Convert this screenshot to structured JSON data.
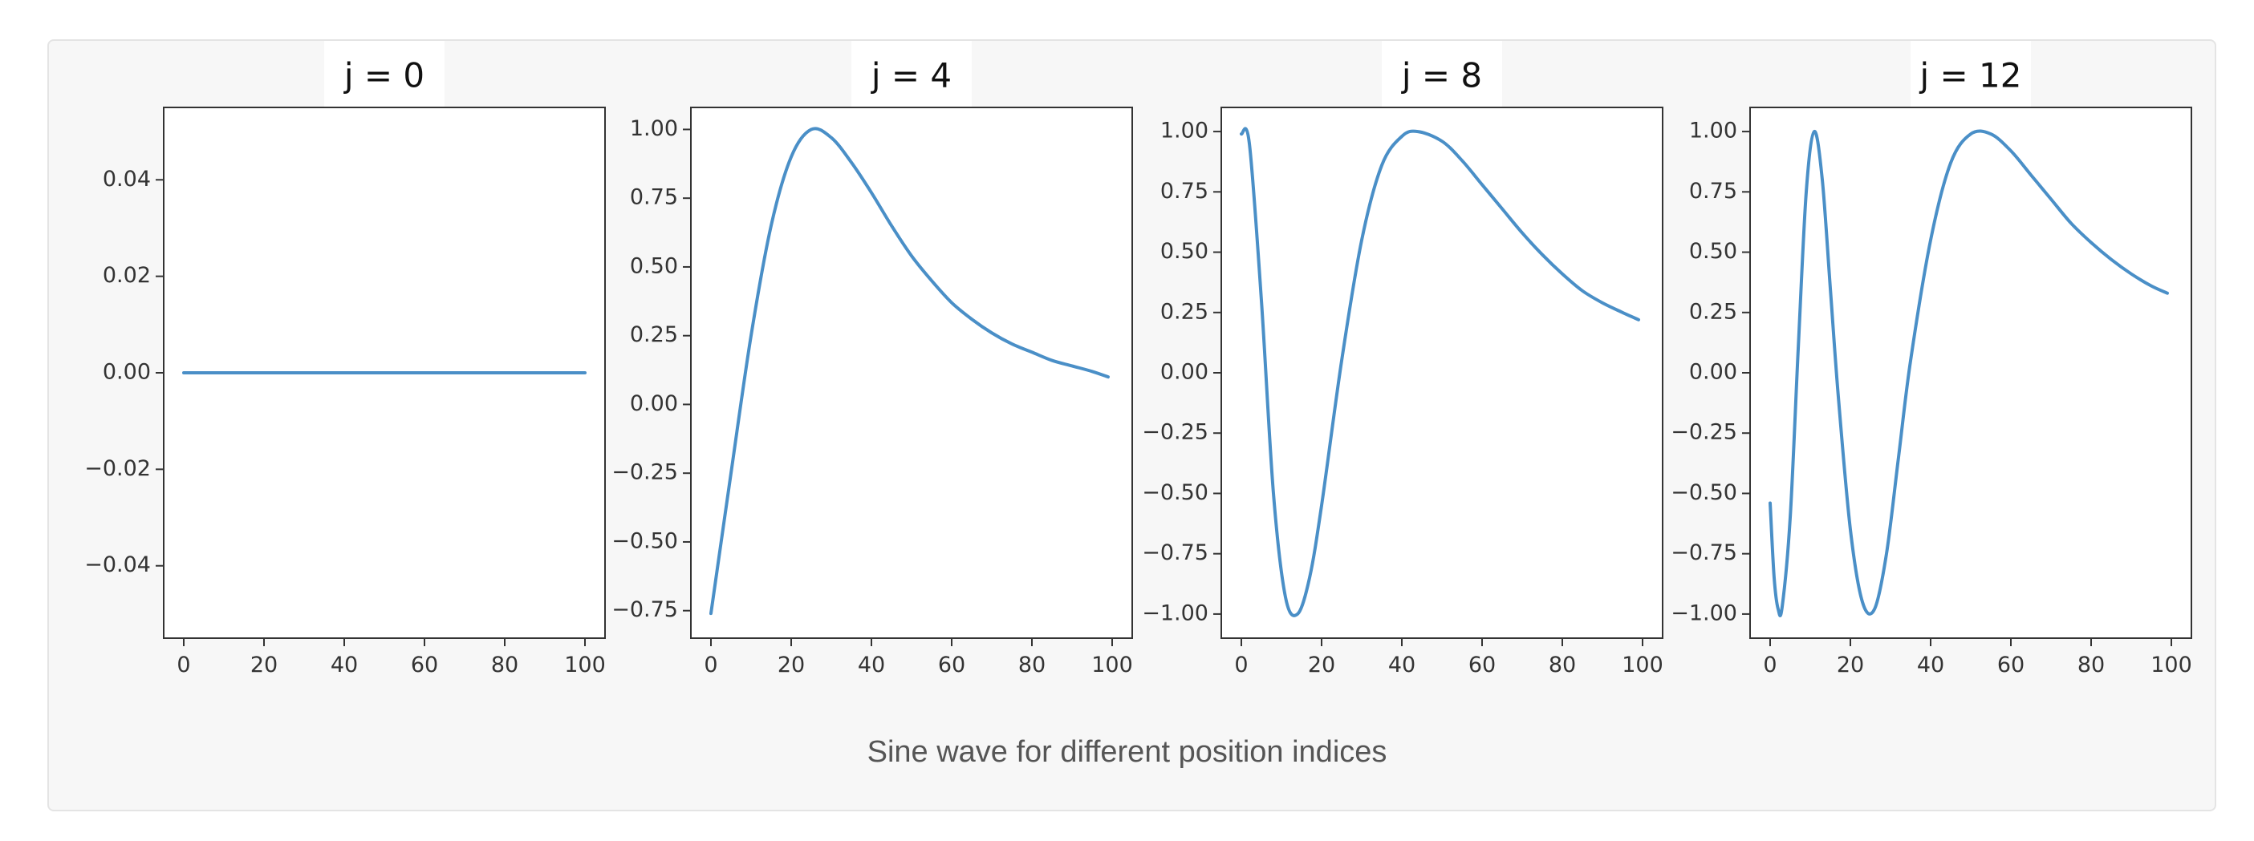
{
  "caption": "Sine wave for different position indices",
  "colors": {
    "line": "#4a8fc7",
    "axes": "#333333",
    "card": "#f7f7f7",
    "plot": "#ffffff"
  },
  "chart_data": [
    {
      "type": "line",
      "title": "j = 0",
      "x": [
        0,
        100
      ],
      "series": [
        {
          "values": [
            0,
            0
          ]
        }
      ],
      "xlim": [
        -5,
        105
      ],
      "ylim": [
        -0.055,
        0.055
      ],
      "xticks": [
        0,
        20,
        40,
        60,
        80,
        100
      ],
      "yticks": [
        -0.04,
        -0.02,
        0.0,
        0.02,
        0.04
      ],
      "ytick_labels": [
        "−0.04",
        "−0.02",
        "0.00",
        "0.02",
        "0.04"
      ],
      "grid": false
    },
    {
      "type": "line",
      "title": "j = 4",
      "x": [
        0,
        5,
        10,
        15,
        20,
        25,
        30,
        35,
        40,
        45,
        50,
        55,
        60,
        65,
        70,
        75,
        80,
        85,
        90,
        95,
        99
      ],
      "series": [
        {
          "values": [
            -0.76,
            -0.25,
            0.25,
            0.65,
            0.9,
            1.0,
            0.97,
            0.88,
            0.77,
            0.65,
            0.54,
            0.45,
            0.37,
            0.31,
            0.26,
            0.22,
            0.19,
            0.16,
            0.14,
            0.12,
            0.1
          ]
        }
      ],
      "xlim": [
        -5,
        105
      ],
      "ylim": [
        -0.85,
        1.08
      ],
      "xticks": [
        0,
        20,
        40,
        60,
        80,
        100
      ],
      "yticks": [
        -0.75,
        -0.5,
        -0.25,
        0.0,
        0.25,
        0.5,
        0.75,
        1.0
      ],
      "ytick_labels": [
        "−0.75",
        "−0.50",
        "−0.25",
        "0.00",
        "0.25",
        "0.50",
        "0.75",
        "1.00"
      ],
      "grid": false
    },
    {
      "type": "line",
      "title": "j = 8",
      "x": [
        0,
        2,
        5,
        8,
        11,
        14,
        17,
        20,
        25,
        30,
        35,
        40,
        44,
        50,
        55,
        60,
        65,
        70,
        75,
        80,
        85,
        90,
        95,
        99
      ],
      "series": [
        {
          "values": [
            0.99,
            0.95,
            0.3,
            -0.5,
            -0.93,
            -1.0,
            -0.85,
            -0.55,
            0.05,
            0.55,
            0.86,
            0.98,
            1.0,
            0.96,
            0.88,
            0.78,
            0.68,
            0.58,
            0.49,
            0.41,
            0.34,
            0.29,
            0.25,
            0.22
          ]
        }
      ],
      "xlim": [
        -5,
        105
      ],
      "ylim": [
        -1.1,
        1.1
      ],
      "xticks": [
        0,
        20,
        40,
        60,
        80,
        100
      ],
      "yticks": [
        -1.0,
        -0.75,
        -0.5,
        -0.25,
        0.0,
        0.25,
        0.5,
        0.75,
        1.0
      ],
      "ytick_labels": [
        "−1.00",
        "−0.75",
        "−0.50",
        "−0.25",
        "0.00",
        "0.25",
        "0.50",
        "0.75",
        "1.00"
      ],
      "grid": false
    },
    {
      "type": "line",
      "title": "j = 12",
      "x": [
        0,
        1,
        2,
        3,
        5,
        7,
        9,
        11,
        13,
        15,
        17,
        20,
        23,
        26,
        29,
        32,
        35,
        40,
        45,
        50,
        55,
        60,
        65,
        70,
        75,
        80,
        85,
        90,
        95,
        99
      ],
      "series": [
        {
          "values": [
            -0.54,
            -0.85,
            -0.98,
            -0.97,
            -0.6,
            0.1,
            0.75,
            1.0,
            0.8,
            0.35,
            -0.1,
            -0.65,
            -0.95,
            -0.98,
            -0.75,
            -0.35,
            0.05,
            0.55,
            0.87,
            0.99,
            0.99,
            0.92,
            0.82,
            0.72,
            0.62,
            0.54,
            0.47,
            0.41,
            0.36,
            0.33
          ]
        }
      ],
      "xlim": [
        -5,
        105
      ],
      "ylim": [
        -1.1,
        1.1
      ],
      "xticks": [
        0,
        20,
        40,
        60,
        80,
        100
      ],
      "yticks": [
        -1.0,
        -0.75,
        -0.5,
        -0.25,
        0.0,
        0.25,
        0.5,
        0.75,
        1.0
      ],
      "ytick_labels": [
        "−1.00",
        "−0.75",
        "−0.50",
        "−0.25",
        "0.00",
        "0.25",
        "0.50",
        "0.75",
        "1.00"
      ],
      "grid": false
    }
  ]
}
